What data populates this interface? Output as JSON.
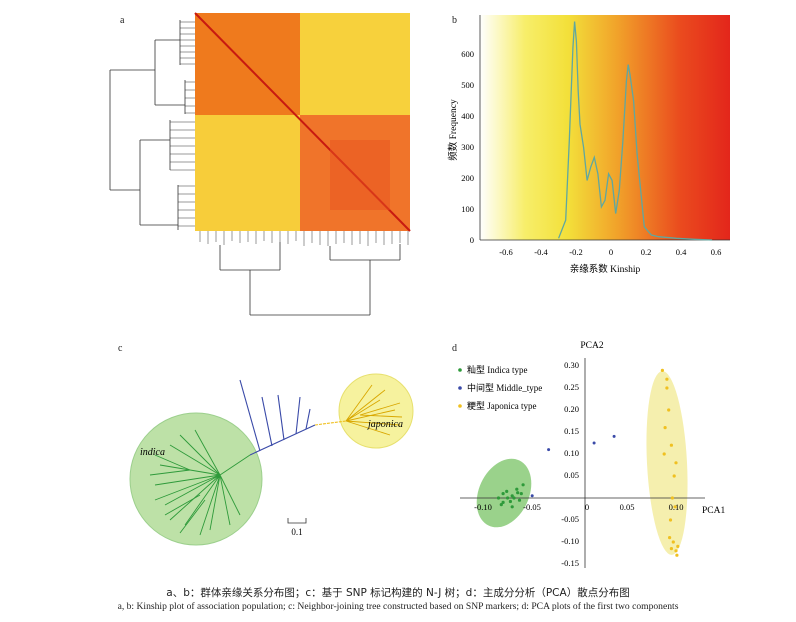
{
  "panels": {
    "a": {
      "letter": "a"
    },
    "b": {
      "letter": "b",
      "ylabel": "频数 Frequency",
      "xlabel": "亲缘系数 Kinship",
      "yticks": [
        "0",
        "100",
        "200",
        "300",
        "400",
        "500",
        "600"
      ],
      "xticks": [
        "-0.6",
        "-0.4",
        "-0.2",
        "0",
        "0.2",
        "0.4",
        "0.6"
      ]
    },
    "c": {
      "letter": "c",
      "group1": "indica",
      "group2": "japonica",
      "scale": "0.1"
    },
    "d": {
      "letter": "d",
      "ylabel": "PCA2",
      "xlabel": "PCA1",
      "legend": [
        "籼型 Indica type",
        "中间型 Middle_type",
        "粳型 Japonica type"
      ],
      "yticks": [
        "0.30",
        "0.25",
        "0.20",
        "0.15",
        "0.10",
        "0.05",
        "-0.05",
        "-0.10",
        "-0.15"
      ],
      "xticks": [
        "-0.10",
        "-0.05",
        "0",
        "0.05",
        "0.10"
      ]
    }
  },
  "caption": {
    "zh": "a、b：群体亲缘关系分布图；c：基于 SNP 标记构建的 N-J 树；d：主成分分析（PCA）散点分布图",
    "en": "a, b: Kinship plot of association population; c: Neighbor-joining tree constructed based on SNP markers; d: PCA plots of the first two components"
  },
  "colors": {
    "indica": "#2e9a3a",
    "middle": "#3a4aa8",
    "japonica": "#f0c020",
    "heat_high": "#e8301c",
    "heat_low": "#f5e020"
  },
  "chart_data": [
    {
      "type": "line",
      "panel": "b",
      "xlabel": "亲缘系数 Kinship",
      "ylabel": "频数 Frequency",
      "xlim": [
        -0.7,
        0.7
      ],
      "ylim": [
        0,
        680
      ],
      "x": [
        -0.26,
        -0.22,
        -0.2,
        -0.18,
        -0.17,
        -0.16,
        -0.15,
        -0.14,
        -0.12,
        -0.1,
        -0.08,
        -0.06,
        -0.04,
        -0.02,
        0.0,
        0.02,
        0.04,
        0.06,
        0.08,
        0.1,
        0.12,
        0.13,
        0.14,
        0.16,
        0.18,
        0.2,
        0.22,
        0.26,
        0.3,
        0.4,
        0.5,
        0.6
      ],
      "y": [
        5,
        60,
        300,
        580,
        660,
        600,
        450,
        350,
        280,
        180,
        220,
        250,
        200,
        100,
        120,
        200,
        180,
        80,
        150,
        300,
        480,
        530,
        500,
        420,
        260,
        150,
        40,
        15,
        10,
        5,
        2,
        0
      ]
    },
    {
      "type": "scatter",
      "panel": "d",
      "xlabel": "PCA1",
      "ylabel": "PCA2",
      "xlim": [
        -0.13,
        0.13
      ],
      "ylim": [
        -0.17,
        0.31
      ],
      "series": [
        {
          "name": "籼型 Indica type",
          "points": [
            [
              -0.09,
              0.01
            ],
            [
              -0.085,
              0.0
            ],
            [
              -0.08,
              0.005
            ],
            [
              -0.075,
              0.02
            ],
            [
              -0.07,
              0.01
            ],
            [
              -0.09,
              -0.01
            ],
            [
              -0.08,
              -0.02
            ],
            [
              -0.095,
              0.0
            ],
            [
              -0.072,
              -0.005
            ],
            [
              -0.068,
              0.03
            ],
            [
              -0.078,
              0.0
            ],
            [
              -0.086,
              0.015
            ],
            [
              -0.092,
              -0.015
            ],
            [
              -0.074,
              0.012
            ],
            [
              -0.082,
              -0.008
            ]
          ]
        },
        {
          "name": "中间型 Middle_type",
          "points": [
            [
              -0.04,
              0.11
            ],
            [
              0.01,
              0.125
            ],
            [
              0.032,
              0.14
            ],
            [
              -0.058,
              0.005
            ]
          ]
        },
        {
          "name": "粳型 Japonica type",
          "points": [
            [
              0.085,
              0.29
            ],
            [
              0.09,
              0.25
            ],
            [
              0.092,
              0.2
            ],
            [
              0.088,
              0.16
            ],
            [
              0.095,
              0.12
            ],
            [
              0.1,
              0.08
            ],
            [
              0.098,
              0.05
            ],
            [
              0.096,
              0.0
            ],
            [
              0.094,
              -0.05
            ],
            [
              0.097,
              -0.1
            ],
            [
              0.1,
              -0.12
            ],
            [
              0.102,
              -0.11
            ],
            [
              0.093,
              -0.09
            ],
            [
              0.09,
              0.27
            ],
            [
              0.087,
              0.1
            ],
            [
              0.099,
              -0.02
            ],
            [
              0.101,
              -0.13
            ],
            [
              0.095,
              -0.115
            ]
          ]
        }
      ]
    }
  ]
}
